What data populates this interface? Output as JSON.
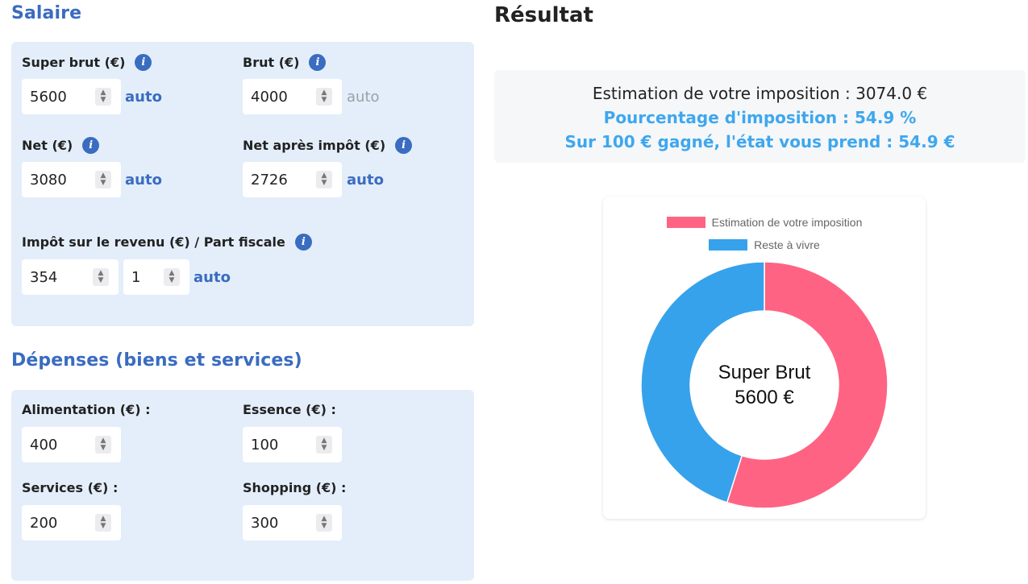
{
  "salaire": {
    "title": "Salaire",
    "super_brut": {
      "label": "Super brut (€)",
      "value": "5600",
      "auto": "auto"
    },
    "brut": {
      "label": "Brut (€)",
      "value": "4000",
      "auto": "auto"
    },
    "net": {
      "label": "Net (€)",
      "value": "3080",
      "auto": "auto"
    },
    "net_apres_impot": {
      "label": "Net après impôt (€)",
      "value": "2726",
      "auto": "auto"
    },
    "impot": {
      "label": "Impôt sur le revenu (€) / Part fiscale",
      "value": "354",
      "part_value": "1",
      "auto": "auto"
    }
  },
  "depenses": {
    "title": "Dépenses (biens et services)",
    "alimentation": {
      "label": "Alimentation (€) :",
      "value": "400"
    },
    "essence": {
      "label": "Essence (€) :",
      "value": "100"
    },
    "services": {
      "label": "Services (€) :",
      "value": "200"
    },
    "shopping": {
      "label": "Shopping (€) :",
      "value": "300"
    }
  },
  "resultat": {
    "title": "Résultat",
    "estimation_line": "Estimation de votre imposition : 3074.0 €",
    "pourcentage_line": "Pourcentage d'imposition : 54.9 %",
    "sur100_line": "Sur 100 € gagné, l'état vous prend : 54.9 €"
  },
  "info_icon": "info-icon",
  "colors": {
    "accent": "#3a6cc0",
    "highlight": "#3ea7ef",
    "pink": "#ff6384",
    "blue": "#36a2eb"
  },
  "chart_data": {
    "type": "pie",
    "variant": "doughnut",
    "series": [
      {
        "name": "Estimation de votre imposition",
        "value": 3074.0,
        "color": "#ff6384"
      },
      {
        "name": "Reste à vivre",
        "value": 2526.0,
        "color": "#36a2eb"
      }
    ],
    "center_label_line1": "Super Brut",
    "center_label_line2": "5600 €",
    "legend_position": "top"
  }
}
